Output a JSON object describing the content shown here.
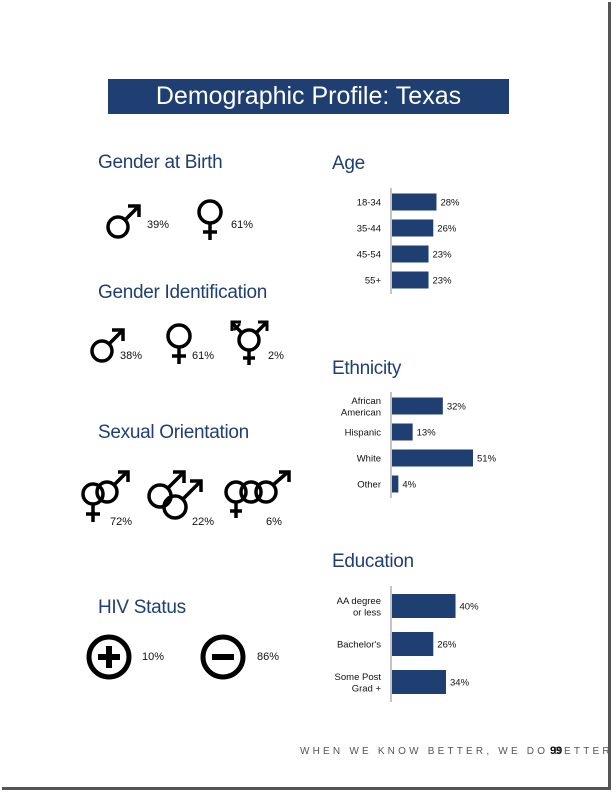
{
  "title": "Demographic Profile: Texas",
  "sections": {
    "gender_birth": {
      "title": "Gender at Birth",
      "items": [
        {
          "icon": "male-icon",
          "value": "39%"
        },
        {
          "icon": "female-icon",
          "value": "61%"
        }
      ]
    },
    "gender_identification": {
      "title": "Gender Identification",
      "items": [
        {
          "icon": "male-icon",
          "value": "38%"
        },
        {
          "icon": "female-icon",
          "value": "61%"
        },
        {
          "icon": "transgender-icon",
          "value": "2%"
        }
      ]
    },
    "sexual_orientation": {
      "title": "Sexual Orientation",
      "items": [
        {
          "icon": "heterosexual-icon",
          "value": "72%"
        },
        {
          "icon": "gay-male-icon",
          "value": "22%"
        },
        {
          "icon": "bisexual-icon",
          "value": "6%"
        }
      ]
    },
    "hiv_status": {
      "title": "HIV Status",
      "items": [
        {
          "icon": "plus-circle-icon",
          "value": "10%"
        },
        {
          "icon": "minus-circle-icon",
          "value": "86%"
        }
      ]
    },
    "age": {
      "title": "Age"
    },
    "ethnicity": {
      "title": "Ethnicity"
    },
    "education": {
      "title": "Education"
    }
  },
  "chart_data": [
    {
      "type": "bar",
      "orientation": "horizontal",
      "title": "Age",
      "categories": [
        "18-34",
        "35-44",
        "45-54",
        "55+"
      ],
      "values": [
        28,
        26,
        23,
        23
      ],
      "labels": [
        "28%",
        "26%",
        "23%",
        "23%"
      ],
      "color": "#1f3f73",
      "xlim": [
        0,
        55
      ]
    },
    {
      "type": "bar",
      "orientation": "horizontal",
      "title": "Ethnicity",
      "categories": [
        [
          "African",
          "American"
        ],
        [
          "Hispanic"
        ],
        [
          "White"
        ],
        [
          "Other"
        ]
      ],
      "values": [
        32,
        13,
        51,
        4
      ],
      "labels": [
        "32%",
        "13%",
        "51%",
        "4%"
      ],
      "color": "#1f3f73",
      "xlim": [
        0,
        55
      ]
    },
    {
      "type": "bar",
      "orientation": "horizontal",
      "title": "Education",
      "categories": [
        [
          "AA degree",
          "or less"
        ],
        [
          "Bachelor's"
        ],
        [
          "Some Post",
          "Grad +"
        ]
      ],
      "values": [
        40,
        26,
        34
      ],
      "labels": [
        "40%",
        "26%",
        "34%"
      ],
      "color": "#1f3f73",
      "xlim": [
        0,
        55
      ]
    }
  ],
  "footer": {
    "tagline": "WHEN WE KNOW BETTER, WE DO BETTER",
    "page_number": "99"
  }
}
